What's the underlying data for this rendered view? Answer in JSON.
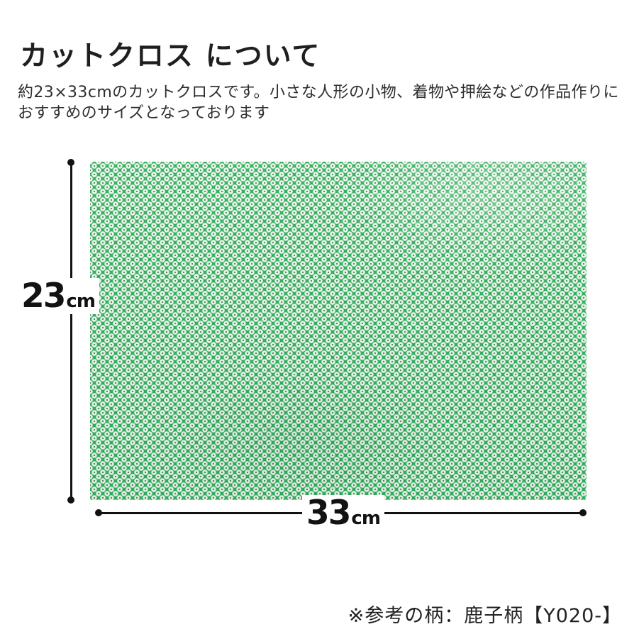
{
  "title": "カットクロス について",
  "description": {
    "line1": "約23×33cmのカットクロスです。小さな人形の小物、着物や押絵などの作品作りに",
    "line2": "おすすめのサイズとなっております"
  },
  "diagram": {
    "height_label": {
      "value": "23",
      "unit": "cm"
    },
    "width_label": {
      "value": "33",
      "unit": "cm"
    }
  },
  "footer_note": "※参考の柄：鹿子柄【Y020-】",
  "colors": {
    "fabric_green": "#2eb25f",
    "spot_white": "#f1f6ec",
    "spot_dot_green": "#53906c",
    "line_black": "#121212",
    "text_black": "#1f1f1f"
  }
}
